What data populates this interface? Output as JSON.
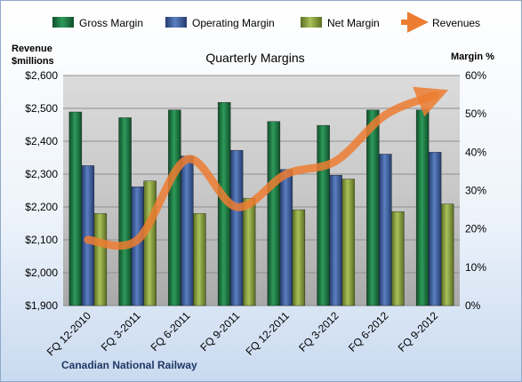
{
  "chart_data": {
    "type": "bar",
    "title": "Quarterly Margins",
    "company": "Canadian National Railway",
    "ylabel_left": [
      "Revenue",
      "$millions"
    ],
    "ylabel_right": "Margin %",
    "categories": [
      "FQ 12-2010",
      "FQ 3-2011",
      "FQ 6-2011",
      "FQ 9-2011",
      "FQ 12-2011",
      "FQ 3-2012",
      "FQ 6-2012",
      "FQ 9-2012"
    ],
    "left_axis": {
      "min": 1900,
      "max": 2600,
      "step": 100,
      "tick_labels": [
        "$1,900",
        "$2,000",
        "$2,100",
        "$2,200",
        "$2,300",
        "$2,400",
        "$2,500",
        "$2,600"
      ]
    },
    "right_axis": {
      "min": 0,
      "max": 60,
      "step": 10,
      "tick_labels": [
        "0%",
        "10%",
        "20%",
        "30%",
        "40%",
        "50%",
        "60%"
      ]
    },
    "series": [
      {
        "name": "Gross Margin",
        "axis": "right",
        "kind": "bar",
        "color": "#1e7b45",
        "values": [
          50.5,
          49,
          51,
          53,
          48,
          47,
          51,
          51
        ]
      },
      {
        "name": "Operating Margin",
        "axis": "right",
        "kind": "bar",
        "color": "#3a5a99",
        "values": [
          36.5,
          31,
          39,
          40.5,
          35.5,
          34,
          39.5,
          40
        ]
      },
      {
        "name": "Net Margin",
        "axis": "right",
        "kind": "bar",
        "color": "#8aa040",
        "values": [
          24,
          32.5,
          24,
          28,
          25,
          33,
          24.5,
          26.5
        ]
      },
      {
        "name": "Revenues",
        "axis": "left",
        "kind": "line",
        "color": "#ed7d31",
        "values": [
          2100,
          2100,
          2345,
          2200,
          2300,
          2340,
          2480,
          2540
        ]
      }
    ],
    "grid": true,
    "legend_position": "top"
  }
}
